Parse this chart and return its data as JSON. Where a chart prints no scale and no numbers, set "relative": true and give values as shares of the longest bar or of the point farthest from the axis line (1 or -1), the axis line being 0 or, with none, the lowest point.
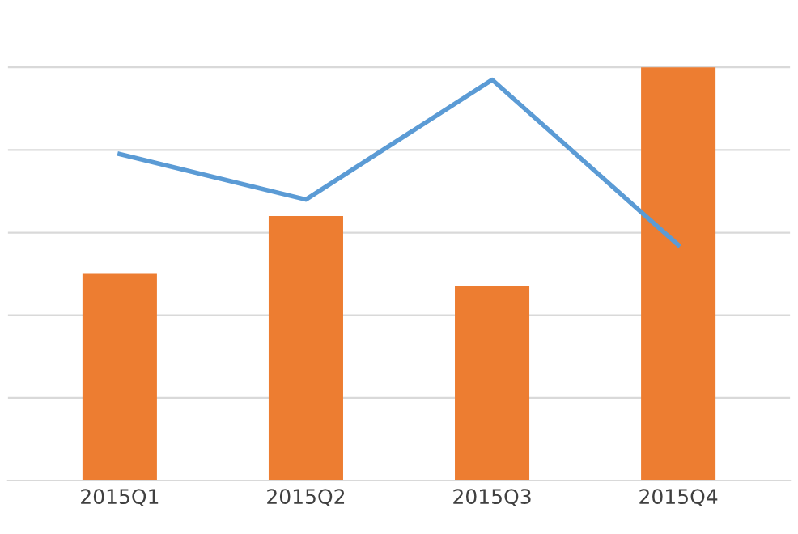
{
  "chart_data": {
    "type": "bar",
    "relative": true,
    "grid": "y",
    "categories": [
      "2015Q1",
      "2015Q2",
      "2015Q3",
      "2015Q4"
    ],
    "series": [
      {
        "color": "#ed7d31",
        "values": [
          0.5,
          0.64,
          0.47,
          1.0
        ]
      },
      {
        "type": "line",
        "color": "#5b9bd5",
        "values": [
          0.79,
          0.68,
          0.97,
          0.57
        ]
      }
    ]
  }
}
